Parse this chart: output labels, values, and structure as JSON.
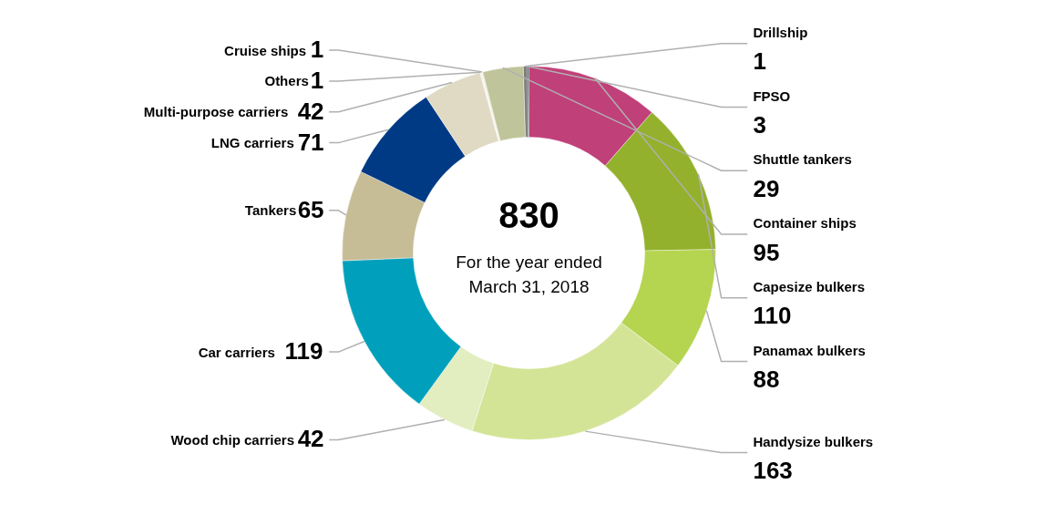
{
  "chart_data": {
    "type": "donut",
    "categories": [
      "Container ships",
      "Capesize bulkers",
      "Panamax bulkers",
      "Handysize bulkers",
      "Wood chip carriers",
      "Car carriers",
      "Tankers",
      "LNG carriers",
      "Multi-purpose carriers",
      "Others",
      "Cruise ships",
      "Shuttle tankers",
      "FPSO",
      "Drillship"
    ],
    "values": [
      95,
      110,
      88,
      163,
      42,
      119,
      65,
      71,
      42,
      1,
      1,
      29,
      3,
      1
    ],
    "colors": [
      "#c0407a",
      "#93b12c",
      "#b5d44f",
      "#d4e496",
      "#e2edc0",
      "#00a0bc",
      "#c6bc96",
      "#003a85",
      "#e0dac4",
      "#f4f2ea",
      "#ece8d8",
      "#c0c49a",
      "#7f7f7f",
      "#404040"
    ],
    "data_labels": true,
    "annotations": [
      "830",
      "For the year ended\nMarch 31, 2018"
    ]
  }
}
